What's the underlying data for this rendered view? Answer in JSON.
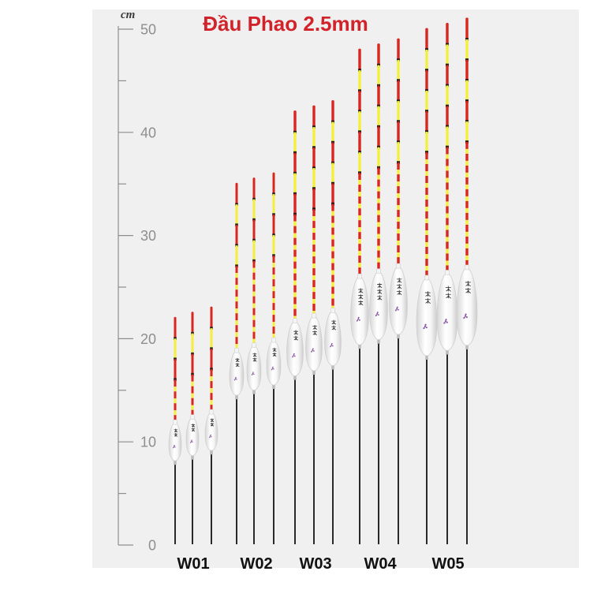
{
  "title": "Đầu Phao 2.5mm",
  "ruler": {
    "unit": "cm",
    "range": [
      0,
      50
    ],
    "labels": [
      50,
      40,
      30,
      20,
      10,
      0
    ],
    "minor_step": 5
  },
  "groups": [
    {
      "label": "W01",
      "float_heights_cm": [
        22,
        22.5,
        23
      ]
    },
    {
      "label": "W02",
      "float_heights_cm": [
        35,
        35.5,
        36
      ]
    },
    {
      "label": "W03",
      "float_heights_cm": [
        42,
        42.5,
        43
      ]
    },
    {
      "label": "W04",
      "float_heights_cm": [
        48,
        48.5,
        49
      ]
    },
    {
      "label": "W05",
      "float_heights_cm": [
        50,
        50.5,
        51
      ]
    }
  ],
  "colors": {
    "title": "#d2232a",
    "panel": "#f0f0f0",
    "ruler": "#8e8e8e",
    "antenna_red": "#d9261f",
    "antenna_yellow": "#f5ef3b",
    "antenna_band": "#1c1c1c",
    "stem": "#141414",
    "body_flower": "#8a55a6",
    "label": "#111111"
  }
}
